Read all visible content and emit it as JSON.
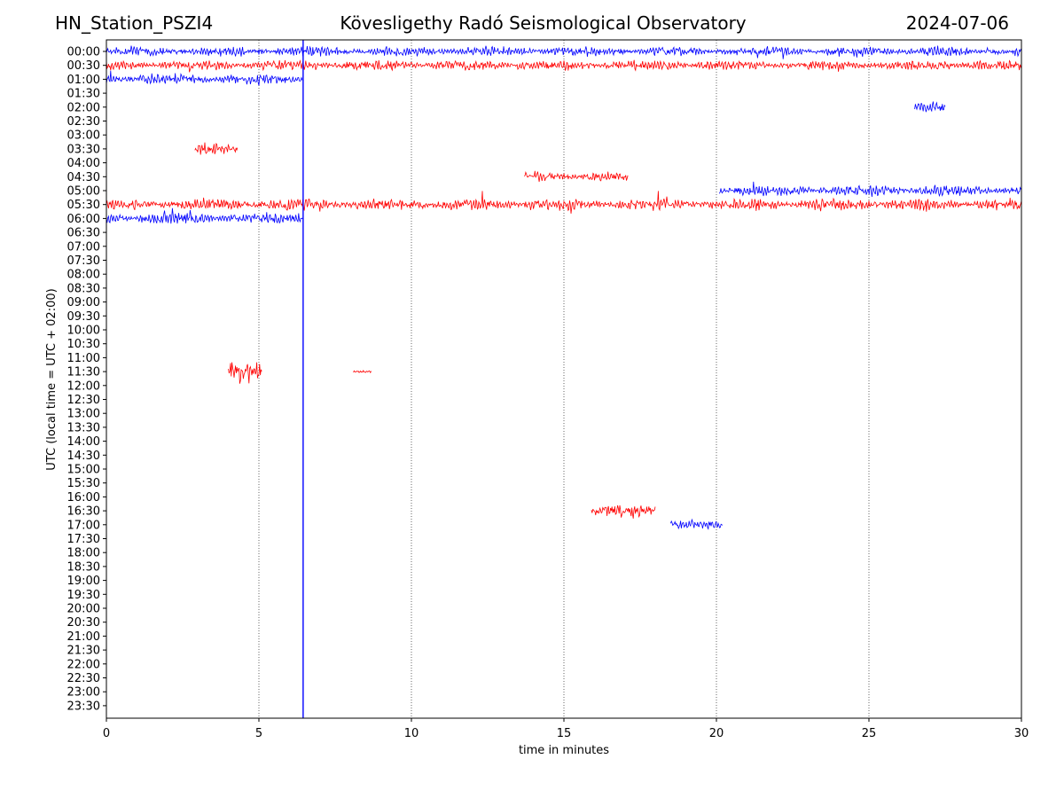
{
  "header": {
    "station": "HN_Station_PSZI4",
    "observatory": "Kövesligethy Radó Seismological Observatory",
    "date": "2024-07-06"
  },
  "chart_data": {
    "type": "line",
    "title": "",
    "xlabel": "time in minutes",
    "ylabel": "UTC (local time = UTC + 02:00)",
    "xlim": [
      0,
      30
    ],
    "x_ticks": [
      0,
      5,
      10,
      15,
      20,
      25,
      30
    ],
    "x_gridlines_dotted": [
      5,
      10,
      15,
      20,
      25
    ],
    "y_tick_labels": [
      "00:00",
      "00:30",
      "01:00",
      "01:30",
      "02:00",
      "02:30",
      "03:00",
      "03:30",
      "04:00",
      "04:30",
      "05:00",
      "05:30",
      "06:00",
      "06:30",
      "07:00",
      "07:30",
      "08:00",
      "08:30",
      "09:00",
      "09:30",
      "10:00",
      "10:30",
      "11:00",
      "11:30",
      "12:00",
      "12:30",
      "13:00",
      "13:30",
      "14:00",
      "14:30",
      "15:00",
      "15:30",
      "16:00",
      "16:30",
      "17:00",
      "17:30",
      "18:00",
      "18:30",
      "19:00",
      "19:30",
      "20:00",
      "20:30",
      "21:00",
      "21:30",
      "22:00",
      "22:30",
      "23:00",
      "23:30"
    ],
    "colors": {
      "hour_line": "#0000ff",
      "half_hour_line": "#ff0000",
      "grid": "#000000"
    },
    "vertical_spike": {
      "x_minute": 6.45,
      "color": "#0000ff"
    },
    "traces": [
      {
        "row": "00:00",
        "color": "#0000ff",
        "x_start": 0,
        "x_end": 30,
        "amplitude": 1.0
      },
      {
        "row": "00:30",
        "color": "#ff0000",
        "x_start": 0,
        "x_end": 30,
        "amplitude": 1.0
      },
      {
        "row": "01:00",
        "color": "#0000ff",
        "x_start": 0,
        "x_end": 6.45,
        "amplitude": 1.1
      },
      {
        "row": "02:00",
        "color": "#0000ff",
        "x_start": 26.5,
        "x_end": 27.5,
        "amplitude": 1.1
      },
      {
        "row": "03:30",
        "color": "#ff0000",
        "x_start": 2.9,
        "x_end": 4.3,
        "amplitude": 1.2
      },
      {
        "row": "04:30",
        "color": "#ff0000",
        "x_start": 13.7,
        "x_end": 17.1,
        "amplitude": 1.0
      },
      {
        "row": "05:00",
        "color": "#0000ff",
        "x_start": 20.1,
        "x_end": 30,
        "amplitude": 1.1
      },
      {
        "row": "05:30",
        "color": "#ff0000",
        "x_start": 0,
        "x_end": 30,
        "amplitude": 1.2
      },
      {
        "row": "06:00",
        "color": "#0000ff",
        "x_start": 0,
        "x_end": 6.45,
        "amplitude": 1.1
      },
      {
        "row": "11:30",
        "color": "#ff0000",
        "x_start": 4.0,
        "x_end": 5.1,
        "amplitude": 2.2
      },
      {
        "row": "11:30",
        "color": "#ff0000",
        "x_start": 8.1,
        "x_end": 8.7,
        "amplitude": 0.3
      },
      {
        "row": "16:30",
        "color": "#ff0000",
        "x_start": 15.9,
        "x_end": 18.0,
        "amplitude": 1.4
      },
      {
        "row": "17:00",
        "color": "#0000ff",
        "x_start": 18.5,
        "x_end": 20.2,
        "amplitude": 0.9
      }
    ]
  }
}
